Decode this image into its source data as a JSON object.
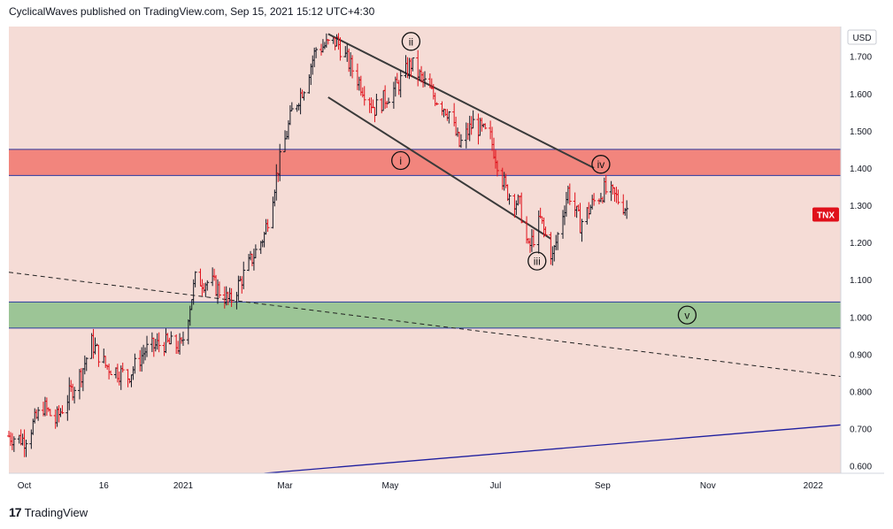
{
  "header": {
    "publish_line": "CyclicalWaves published on TradingView.com, Sep 15, 2021 15:12 UTC+4:30"
  },
  "footer": {
    "brand": "TradingView",
    "logo_text": "17"
  },
  "colors": {
    "background": "#f5dcd6",
    "up_bar": "#131722",
    "down_bar": "#e0101a",
    "resistance_zone": "#f2857d",
    "support_zone": "#9cc596",
    "channel": "#3a3a3a",
    "trendline": "#1f1f9f",
    "ticker_badge": "#e0101a"
  },
  "chart_data": {
    "type": "ohlc",
    "ticker": "TNX",
    "currency": "USD",
    "y_ticks": [
      "1.700",
      "1.600",
      "1.500",
      "1.400",
      "1.300",
      "1.200",
      "1.100",
      "1.000",
      "0.900",
      "0.800",
      "0.700",
      "0.600"
    ],
    "ylim": [
      0.58,
      1.78
    ],
    "x_ticks": [
      "Oct",
      "16",
      "2021",
      "Mar",
      "May",
      "Jul",
      "Sep",
      "Nov",
      "2022"
    ],
    "x_tick_dates": [
      "2020-10-01",
      "2020-11-16",
      "2021-01-01",
      "2021-03-01",
      "2021-05-01",
      "2021-07-01",
      "2021-09-01",
      "2021-11-01",
      "2022-01-01"
    ],
    "xlim": [
      "2020-09-22",
      "2022-01-17"
    ],
    "price_path": [
      [
        "2020-09-22",
        0.68
      ],
      [
        "2020-10-01",
        0.67
      ],
      [
        "2020-10-12",
        0.76
      ],
      [
        "2020-10-19",
        0.72
      ],
      [
        "2020-10-28",
        0.8
      ],
      [
        "2020-11-03",
        0.85
      ],
      [
        "2020-11-09",
        0.93
      ],
      [
        "2020-11-17",
        0.87
      ],
      [
        "2020-11-30",
        0.84
      ],
      [
        "2020-12-10",
        0.91
      ],
      [
        "2020-12-20",
        0.93
      ],
      [
        "2020-12-31",
        0.92
      ],
      [
        "2021-01-08",
        1.1
      ],
      [
        "2021-01-18",
        1.09
      ],
      [
        "2021-01-28",
        1.04
      ],
      [
        "2021-02-08",
        1.14
      ],
      [
        "2021-02-17",
        1.22
      ],
      [
        "2021-02-25",
        1.4
      ],
      [
        "2021-03-05",
        1.55
      ],
      [
        "2021-03-12",
        1.62
      ],
      [
        "2021-03-19",
        1.72
      ],
      [
        "2021-03-31",
        1.74
      ],
      [
        "2021-04-12",
        1.64
      ],
      [
        "2021-04-22",
        1.56
      ],
      [
        "2021-05-05",
        1.62
      ],
      [
        "2021-05-13",
        1.68
      ],
      [
        "2021-05-25",
        1.6
      ],
      [
        "2021-06-04",
        1.55
      ],
      [
        "2021-06-10",
        1.46
      ],
      [
        "2021-06-18",
        1.52
      ],
      [
        "2021-06-28",
        1.48
      ],
      [
        "2021-07-07",
        1.34
      ],
      [
        "2021-07-15",
        1.3
      ],
      [
        "2021-07-20",
        1.18
      ],
      [
        "2021-07-27",
        1.26
      ],
      [
        "2021-08-03",
        1.16
      ],
      [
        "2021-08-12",
        1.34
      ],
      [
        "2021-08-19",
        1.25
      ],
      [
        "2021-08-27",
        1.31
      ],
      [
        "2021-09-02",
        1.34
      ],
      [
        "2021-09-09",
        1.32
      ],
      [
        "2021-09-15",
        1.29
      ]
    ],
    "zones": [
      {
        "name": "resistance",
        "from": 1.38,
        "to": 1.45
      },
      {
        "name": "support",
        "from": 0.97,
        "to": 1.04
      }
    ],
    "lines": [
      {
        "name": "channel-upper",
        "from": [
          "2021-03-26",
          1.76
        ],
        "to": [
          "2021-08-27",
          1.4
        ]
      },
      {
        "name": "channel-lower",
        "from": [
          "2021-03-26",
          1.59
        ],
        "to": [
          "2021-08-02",
          1.21
        ]
      },
      {
        "name": "dashed-trendline",
        "from": [
          "2020-09-22",
          1.12
        ],
        "to": [
          "2022-01-17",
          0.84
        ]
      },
      {
        "name": "rising-trendline",
        "from": [
          "2021-02-17",
          0.58
        ],
        "to": [
          "2022-01-17",
          0.71
        ]
      }
    ],
    "wave_labels": [
      {
        "label": "i",
        "date": "2021-05-07",
        "price": 1.42
      },
      {
        "label": "ii",
        "date": "2021-05-13",
        "price": 1.74
      },
      {
        "label": "iii",
        "date": "2021-07-25",
        "price": 1.15
      },
      {
        "label": "iv",
        "date": "2021-08-31",
        "price": 1.41
      },
      {
        "label": "v",
        "date": "2021-10-20",
        "price": 1.005
      }
    ],
    "last_price_marker": {
      "price": 1.275
    }
  }
}
